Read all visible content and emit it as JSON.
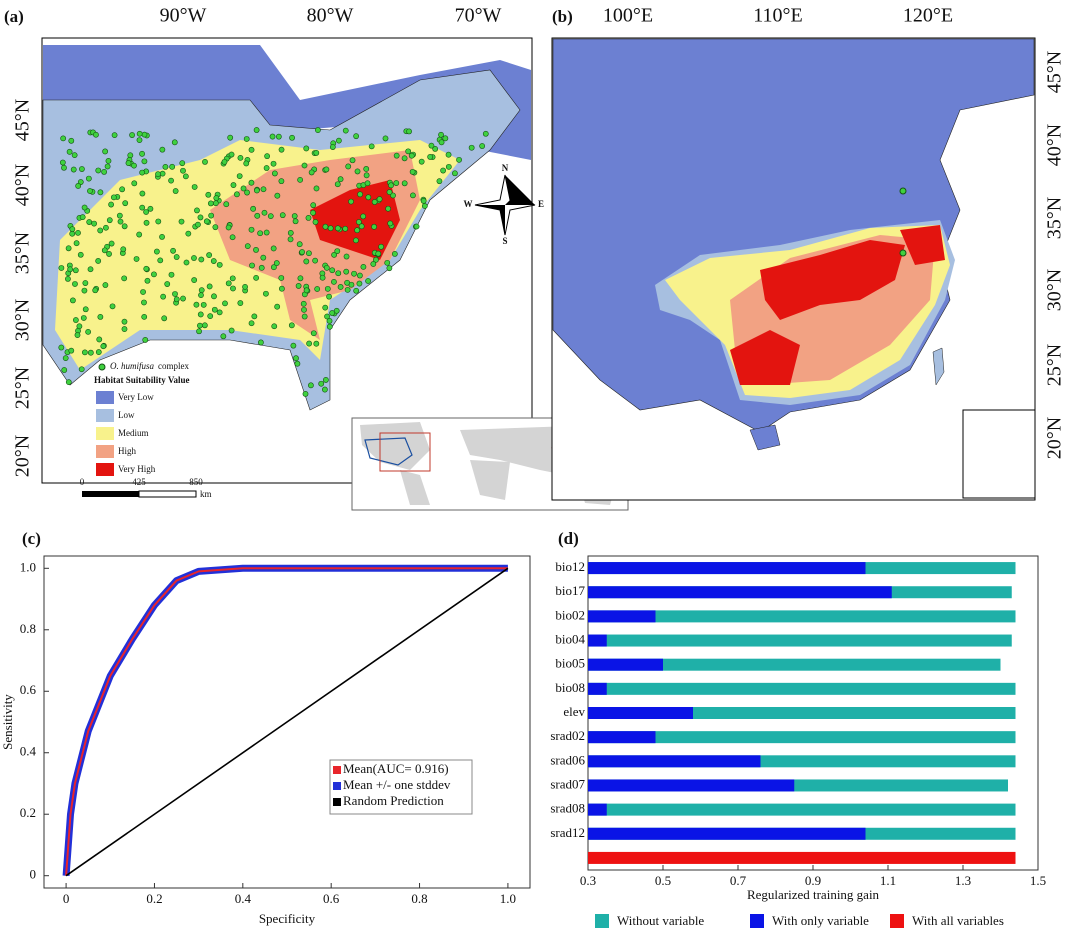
{
  "maps": [
    {
      "label": "(a)",
      "top_labels": [
        "90°W",
        "80°W",
        "70°W"
      ],
      "side_labels": [
        "45°N",
        "40°N",
        "35°N",
        "30°N",
        "25°N",
        "20°N"
      ],
      "compass": {
        "n": "N",
        "s": "S",
        "e": "E",
        "w": "W"
      },
      "legend": {
        "species_name": "O. humifusa",
        "species_suffix": "complex",
        "title": "Habitat Suitability Value",
        "classes": [
          {
            "label": "Very Low",
            "color": "#6c80d2"
          },
          {
            "label": "Low",
            "color": "#a7bfe0"
          },
          {
            "label": "Medium",
            "color": "#f8f28c"
          },
          {
            "label": "High",
            "color": "#f2a283"
          },
          {
            "label": "Very High",
            "color": "#e3140f"
          }
        ]
      },
      "scale": {
        "ticks": [
          0,
          425,
          850
        ],
        "unit": "km"
      }
    },
    {
      "label": "(b)",
      "top_labels": [
        "100°E",
        "110°E",
        "120°E"
      ],
      "side_labels": [
        "45°N",
        "40°N",
        "35°N",
        "30°N",
        "25°N",
        "20°N"
      ]
    }
  ],
  "chart_data": [
    {
      "type": "line",
      "label": "(c)",
      "xlabel": "Specificity",
      "ylabel": "Sensitivity",
      "x": [
        0,
        0.01,
        0.02,
        0.05,
        0.1,
        0.15,
        0.2,
        0.25,
        0.3,
        0.4,
        0.6,
        0.8,
        1.0
      ],
      "xlim": [
        -0.05,
        1.05
      ],
      "ylim": [
        -0.04,
        1.04
      ],
      "xticks": [
        0,
        0.2,
        0.4,
        0.6,
        0.8,
        {
          "value": 1,
          "label": "1.0"
        }
      ],
      "yticks": [
        0,
        0.2,
        0.4,
        0.6,
        0.8,
        {
          "value": 1,
          "label": "1.0"
        }
      ],
      "legend": "lower right",
      "series": [
        {
          "name": "Mean +/- one stddev",
          "color": "#2230d8",
          "values": [
            0,
            0.2,
            0.3,
            0.47,
            0.65,
            0.77,
            0.88,
            0.96,
            0.99,
            1,
            1,
            1,
            1
          ]
        },
        {
          "name": "Mean(AUC= 0.916)",
          "color": "#e8252b",
          "values": [
            0,
            0.2,
            0.3,
            0.47,
            0.65,
            0.77,
            0.88,
            0.96,
            0.99,
            1,
            1,
            1,
            1
          ]
        },
        {
          "name": "Random Prediction",
          "color": "#000000",
          "x": [
            0,
            1
          ],
          "values": [
            0,
            1
          ]
        }
      ]
    },
    {
      "type": "barh",
      "label": "(d)",
      "xlabel": "Regularized training gain",
      "categories": [
        "bio12",
        "bio17",
        "bio02",
        "bio04",
        "bio05",
        "bio08",
        "elev",
        "srad02",
        "srad06",
        "srad07",
        "srad08",
        "srad12",
        null
      ],
      "xlim": [
        0.3,
        1.5
      ],
      "xticks": [
        0.3,
        0.5,
        0.7,
        0.9,
        1.1,
        1.3,
        1.5
      ],
      "legend": "bottom",
      "series": [
        {
          "name": "Without variable",
          "color": "#1fb0a8",
          "values": [
            1.44,
            1.43,
            1.44,
            1.43,
            1.4,
            1.44,
            1.44,
            1.44,
            1.44,
            1.42,
            1.44,
            1.44,
            null
          ]
        },
        {
          "name": "With only variable",
          "color": "#0a14e6",
          "values": [
            1.04,
            1.11,
            0.48,
            0.35,
            0.5,
            0.35,
            0.58,
            0.48,
            0.76,
            0.85,
            0.35,
            1.04,
            null
          ]
        },
        {
          "name": "With all variables",
          "color": "#ee1111",
          "values": [
            null,
            null,
            null,
            null,
            null,
            null,
            null,
            null,
            null,
            null,
            null,
            null,
            1.44
          ]
        }
      ]
    }
  ]
}
